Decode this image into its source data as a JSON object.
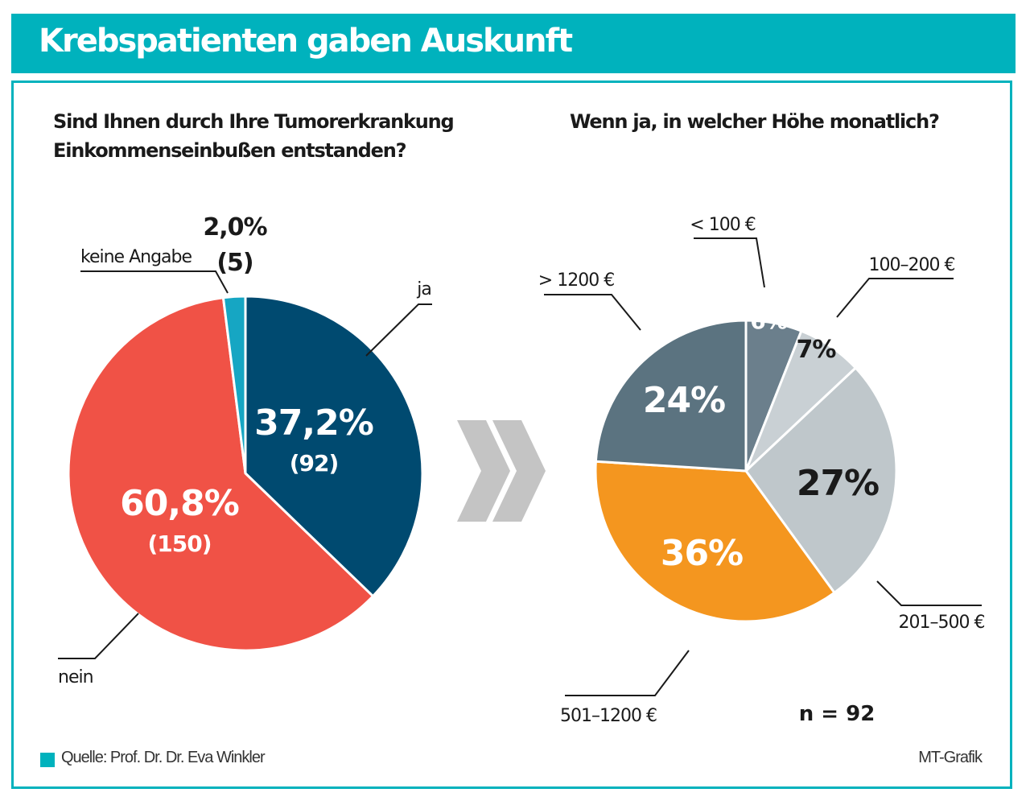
{
  "header": {
    "title": "Krebspatienten gaben Auskunft"
  },
  "footer": {
    "source": "Quelle: Prof. Dr. Dr. Eva Winkler",
    "credit": "MT-Grafik"
  },
  "colors": {
    "brand": "#00b2bd",
    "ja": "#004a70",
    "nein": "#f05246",
    "keine": "#16a6c3",
    "lt100": "#6b7f8c",
    "r100_200": "#c9d0d4",
    "r201_500": "#bfc7cb",
    "r501_1200": "#f4961f",
    "gt1200": "#5b7380"
  },
  "chart_data": [
    {
      "type": "pie",
      "title_lines": [
        "Sind Ihnen durch Ihre Tumorerkrankung",
        "Einkommenseinbußen entstanden?"
      ],
      "slices": [
        {
          "label": "ja",
          "value": 37.2,
          "value_label": "37,2%",
          "count_label": "(92)"
        },
        {
          "label": "nein",
          "value": 60.8,
          "value_label": "60,8%",
          "count_label": "(150)"
        },
        {
          "label": "keine Angabe",
          "value": 2.0,
          "value_label": "2,0%",
          "count_label": "(5)"
        }
      ]
    },
    {
      "type": "pie",
      "title": "Wenn ja, in welcher Höhe monatlich?",
      "note": "n = 92",
      "slices": [
        {
          "label": "< 100 €",
          "value": 6,
          "value_label": "6%"
        },
        {
          "label": "100–200 €",
          "value": 7,
          "value_label": "7%"
        },
        {
          "label": "201–500 €",
          "value": 27,
          "value_label": "27%"
        },
        {
          "label": "501–1200 €",
          "value": 36,
          "value_label": "36%"
        },
        {
          "label": "> 1200 €",
          "value": 24,
          "value_label": "24%"
        }
      ]
    }
  ]
}
